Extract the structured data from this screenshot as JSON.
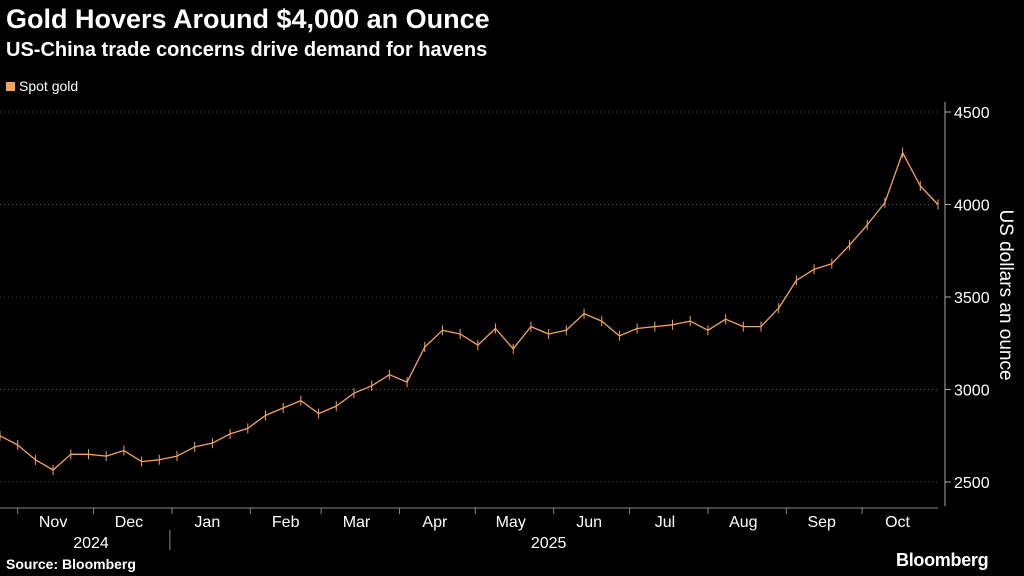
{
  "title": "Gold Hovers Around $4,000 an Ounce",
  "subtitle": "US-China trade concerns drive demand for havens",
  "source": "Source: Bloomberg",
  "brand": "Bloomberg",
  "colors": {
    "background": "#000000",
    "series": "#f5a35c",
    "grid": "#555555",
    "text": "#ffffff"
  },
  "chart_data": {
    "type": "line",
    "series": [
      {
        "name": "Spot gold",
        "color": "#f5a35c",
        "x": [
          "2024-10-25",
          "2024-11-01",
          "2024-11-08",
          "2024-11-15",
          "2024-11-22",
          "2024-11-29",
          "2024-12-06",
          "2024-12-13",
          "2024-12-20",
          "2024-12-27",
          "2025-01-03",
          "2025-01-10",
          "2025-01-17",
          "2025-01-24",
          "2025-01-31",
          "2025-02-07",
          "2025-02-14",
          "2025-02-21",
          "2025-02-28",
          "2025-03-07",
          "2025-03-14",
          "2025-03-21",
          "2025-03-28",
          "2025-04-04",
          "2025-04-11",
          "2025-04-18",
          "2025-04-25",
          "2025-05-02",
          "2025-05-09",
          "2025-05-16",
          "2025-05-23",
          "2025-05-30",
          "2025-06-06",
          "2025-06-13",
          "2025-06-20",
          "2025-06-27",
          "2025-07-04",
          "2025-07-11",
          "2025-07-18",
          "2025-07-25",
          "2025-08-01",
          "2025-08-08",
          "2025-08-15",
          "2025-08-22",
          "2025-08-29",
          "2025-09-05",
          "2025-09-12",
          "2025-09-19",
          "2025-09-26",
          "2025-10-03",
          "2025-10-10",
          "2025-10-17",
          "2025-10-24",
          "2025-10-31"
        ],
        "values": [
          2750,
          2700,
          2620,
          2565,
          2650,
          2650,
          2640,
          2670,
          2610,
          2620,
          2640,
          2690,
          2710,
          2760,
          2790,
          2860,
          2900,
          2940,
          2870,
          2910,
          2980,
          3020,
          3080,
          3040,
          3230,
          3320,
          3300,
          3240,
          3330,
          3220,
          3340,
          3300,
          3320,
          3410,
          3370,
          3290,
          3330,
          3340,
          3350,
          3370,
          3320,
          3380,
          3340,
          3340,
          3440,
          3590,
          3650,
          3680,
          3780,
          3890,
          4010,
          4280,
          4100,
          4000
        ]
      }
    ],
    "x_ticks": [
      "Nov",
      "Dec",
      "Jan",
      "Feb",
      "Mar",
      "Apr",
      "May",
      "Jun",
      "Jul",
      "Aug",
      "Sep",
      "Oct"
    ],
    "x_tick_dates": [
      "2024-11-15",
      "2024-12-15",
      "2025-01-15",
      "2025-02-15",
      "2025-03-15",
      "2025-04-15",
      "2025-05-15",
      "2025-06-15",
      "2025-07-15",
      "2025-08-15",
      "2025-09-15",
      "2025-10-15"
    ],
    "year_labels": [
      {
        "label": "2024",
        "center_date": "2024-11-30"
      },
      {
        "label": "2025",
        "center_date": "2025-05-30"
      }
    ],
    "year_divider_date": "2025-01-01",
    "x_range": [
      "2024-10-25",
      "2025-10-31"
    ],
    "y_ticks": [
      2500,
      3000,
      3500,
      4000,
      4500
    ],
    "ylim": [
      2500,
      4500
    ],
    "ylabel": "US dollars an ounce",
    "y_axis_side": "right",
    "grid": "horizontal-dotted",
    "legend_position": "top-left"
  }
}
